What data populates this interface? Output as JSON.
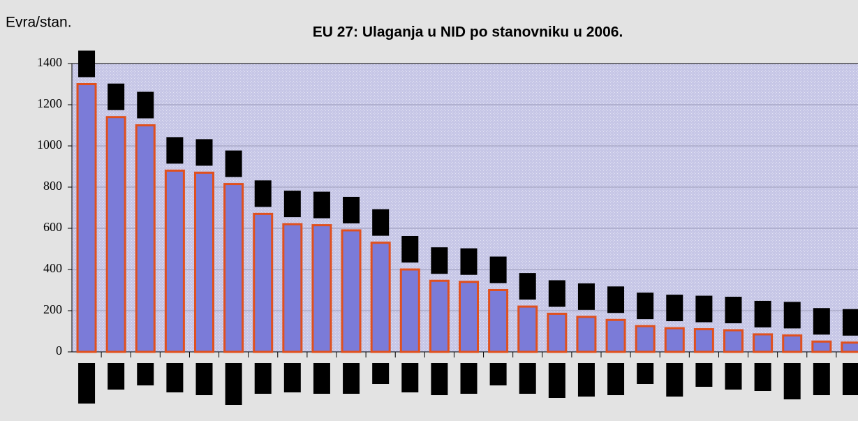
{
  "chart_data": {
    "type": "bar",
    "title": "EU 27: Ulaganja u NID po stanovniku u 2006.",
    "y_label": "Evra/stan.",
    "categories": [
      null,
      null,
      null,
      null,
      null,
      null,
      null,
      null,
      null,
      null,
      null,
      null,
      null,
      null,
      null,
      null,
      null,
      null,
      null,
      null,
      null,
      null,
      null,
      null,
      null,
      null,
      null
    ],
    "values": [
      1300,
      1140,
      1100,
      880,
      870,
      815,
      670,
      620,
      615,
      590,
      530,
      400,
      345,
      340,
      300,
      220,
      185,
      170,
      155,
      125,
      115,
      110,
      105,
      85,
      80,
      50,
      45
    ],
    "color": "#7b7bd8",
    "edge_color": "#e0501e",
    "ylim": [
      0,
      1400
    ],
    "yticks": [
      0,
      200,
      400,
      600,
      800,
      1000,
      1200,
      1400
    ],
    "grid": true
  }
}
